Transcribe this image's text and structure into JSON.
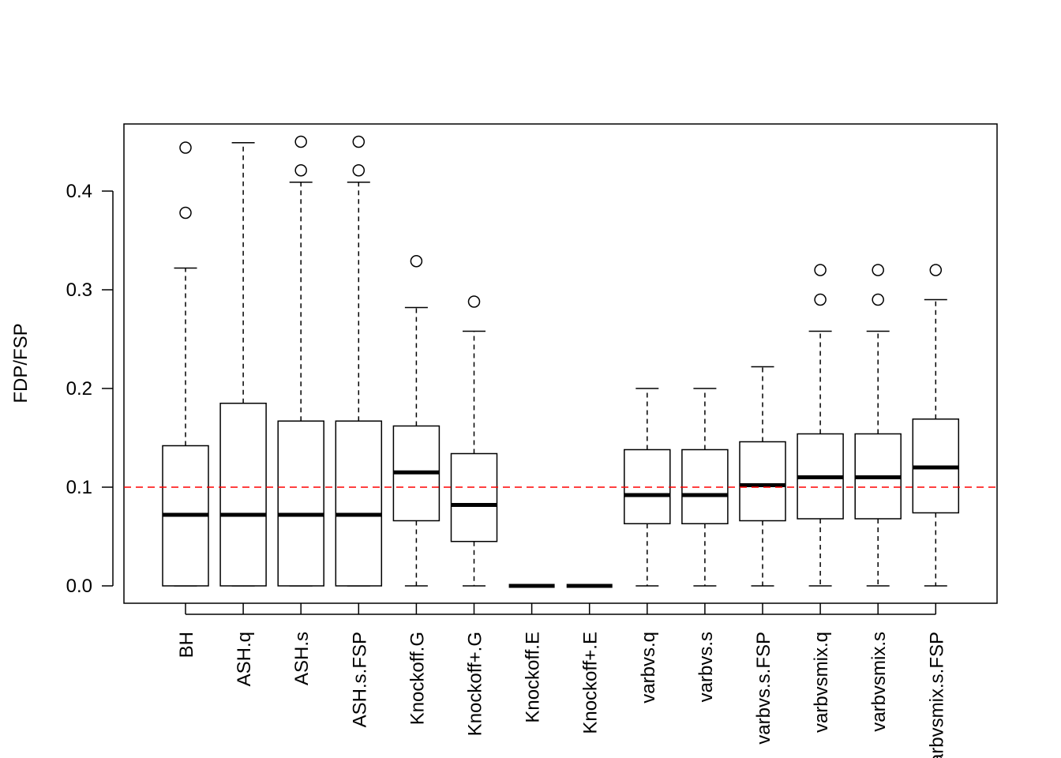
{
  "chart_data": {
    "type": "boxplot",
    "title": "",
    "xlabel": "",
    "ylabel": "FDP/FSP",
    "ylim": [
      -0.0176,
      0.468
    ],
    "yticks": [
      0.0,
      0.1,
      0.2,
      0.3,
      0.4
    ],
    "ytick_labels": [
      "0.0",
      "0.1",
      "0.2",
      "0.3",
      "0.4"
    ],
    "grid": false,
    "reference_line": {
      "y": 0.1,
      "color": "#FF0000",
      "style": "dashed"
    },
    "categories": [
      "BH",
      "ASH.q",
      "ASH.s",
      "ASH.s.FSP",
      "Knockoff.G",
      "Knockoff+.G",
      "Knockoff.E",
      "Knockoff+.E",
      "varbvs.q",
      "varbvs.s",
      "varbvs.s.FSP",
      "varbvsmix.q",
      "varbvsmix.s",
      "varbvsmix.s.FSP"
    ],
    "boxes": [
      {
        "min": 0,
        "q1": 0,
        "median": 0.072,
        "q3": 0.142,
        "max": 0.322,
        "outliers": [
          0.378,
          0.444
        ]
      },
      {
        "min": 0,
        "q1": 0,
        "median": 0.072,
        "q3": 0.185,
        "max": 0.449,
        "outliers": []
      },
      {
        "min": 0,
        "q1": 0,
        "median": 0.072,
        "q3": 0.167,
        "max": 0.409,
        "outliers": [
          0.421,
          0.45
        ]
      },
      {
        "min": 0,
        "q1": 0,
        "median": 0.072,
        "q3": 0.167,
        "max": 0.409,
        "outliers": [
          0.421,
          0.45
        ]
      },
      {
        "min": 0,
        "q1": 0.066,
        "median": 0.115,
        "q3": 0.162,
        "max": 0.282,
        "outliers": [
          0.329
        ]
      },
      {
        "min": 0,
        "q1": 0.045,
        "median": 0.082,
        "q3": 0.134,
        "max": 0.258,
        "outliers": [
          0.288
        ]
      },
      {
        "min": 0,
        "q1": 0,
        "median": 0,
        "q3": 0,
        "max": 0,
        "outliers": []
      },
      {
        "min": 0,
        "q1": 0,
        "median": 0,
        "q3": 0,
        "max": 0,
        "outliers": []
      },
      {
        "min": 0,
        "q1": 0.063,
        "median": 0.092,
        "q3": 0.138,
        "max": 0.2,
        "outliers": []
      },
      {
        "min": 0,
        "q1": 0.063,
        "median": 0.092,
        "q3": 0.138,
        "max": 0.2,
        "outliers": []
      },
      {
        "min": 0,
        "q1": 0.066,
        "median": 0.102,
        "q3": 0.146,
        "max": 0.222,
        "outliers": []
      },
      {
        "min": 0,
        "q1": 0.068,
        "median": 0.11,
        "q3": 0.154,
        "max": 0.258,
        "outliers": [
          0.29,
          0.32
        ]
      },
      {
        "min": 0,
        "q1": 0.068,
        "median": 0.11,
        "q3": 0.154,
        "max": 0.258,
        "outliers": [
          0.29,
          0.32
        ]
      },
      {
        "min": 0,
        "q1": 0.074,
        "median": 0.12,
        "q3": 0.169,
        "max": 0.29,
        "outliers": [
          0.32
        ]
      }
    ]
  }
}
